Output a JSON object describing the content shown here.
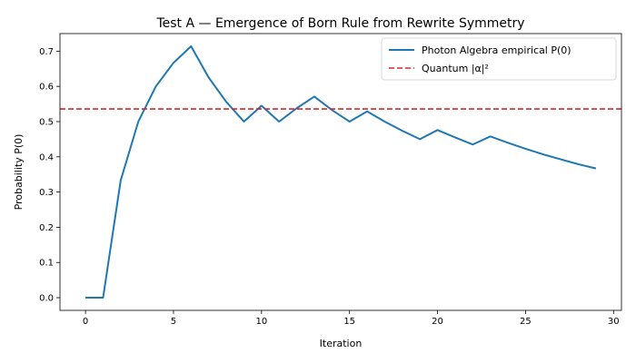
{
  "chart_data": {
    "type": "line",
    "title": "Test A — Emergence of Born Rule from Rewrite Symmetry",
    "xlabel": "Iteration",
    "ylabel": "Probability P(0)",
    "xlim": [
      -1.45,
      30.45
    ],
    "ylim": [
      -0.036,
      0.75
    ],
    "xticks": [
      0,
      5,
      10,
      15,
      20,
      25,
      30
    ],
    "xtick_labels": [
      "0",
      "5",
      "10",
      "15",
      "20",
      "25",
      "30"
    ],
    "yticks": [
      0.0,
      0.1,
      0.2,
      0.3,
      0.4,
      0.5,
      0.6,
      0.7
    ],
    "ytick_labels": [
      "0.0",
      "0.1",
      "0.2",
      "0.3",
      "0.4",
      "0.5",
      "0.6",
      "0.7"
    ],
    "grid": false,
    "legend_position": "top-right",
    "series": [
      {
        "name": "Photon Algebra empirical P(0)",
        "color": "#1f77b4",
        "style": "solid",
        "x": [
          0,
          1,
          2,
          3,
          4,
          5,
          6,
          7,
          8,
          9,
          10,
          11,
          12,
          13,
          14,
          15,
          16,
          17,
          18,
          19,
          20,
          21,
          22,
          23,
          24,
          25,
          26,
          27,
          28,
          29
        ],
        "y": [
          0.0,
          0.0,
          0.333,
          0.5,
          0.6,
          0.667,
          0.714,
          0.625,
          0.556,
          0.5,
          0.545,
          0.5,
          0.538,
          0.571,
          0.533,
          0.5,
          0.529,
          0.5,
          0.474,
          0.45,
          0.476,
          0.455,
          0.435,
          0.458,
          0.44,
          0.423,
          0.407,
          0.393,
          0.379,
          0.367
        ]
      },
      {
        "name": "Quantum |α|²",
        "color": "#d62728",
        "style": "dashed",
        "hline": 0.536
      }
    ]
  }
}
